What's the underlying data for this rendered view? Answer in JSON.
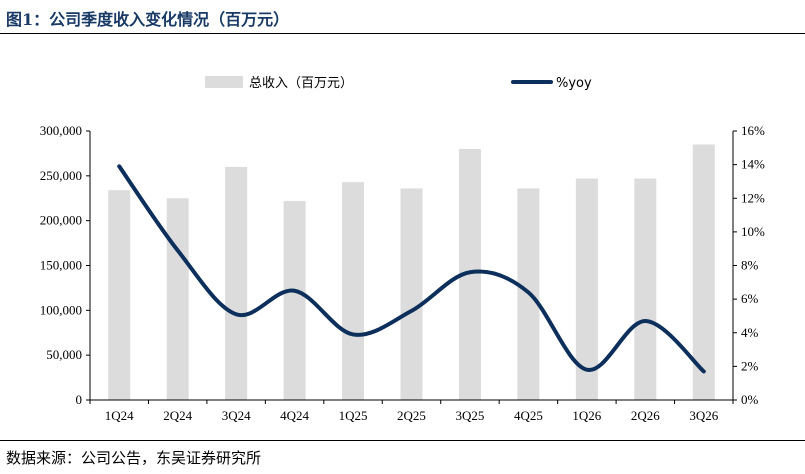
{
  "figure": {
    "title": "图1：公司季度收入变化情况（百万元）",
    "source": "数据来源：公司公告，东吴证券研究所"
  },
  "chart_data": {
    "type": "bar",
    "categories": [
      "1Q24",
      "2Q24",
      "3Q24",
      "4Q24",
      "1Q25",
      "2Q25",
      "3Q25",
      "4Q25",
      "1Q26",
      "2Q26",
      "3Q26"
    ],
    "series": [
      {
        "name": "总收入（百万元）",
        "type": "bar",
        "axis": "left",
        "color": "#dcdcdc",
        "values": [
          234000,
          225000,
          260000,
          222000,
          243000,
          236000,
          280000,
          236000,
          247000,
          247000,
          285000
        ]
      },
      {
        "name": "%yoy",
        "type": "line",
        "axis": "right",
        "color": "#0d2f5c",
        "values": [
          13.9,
          8.9,
          5.1,
          6.5,
          3.9,
          5.3,
          7.6,
          6.4,
          1.8,
          4.7,
          1.7
        ]
      }
    ],
    "y_left": {
      "lim": [
        0,
        300000
      ],
      "ticks": [
        0,
        50000,
        100000,
        150000,
        200000,
        250000,
        300000
      ],
      "tick_labels": [
        "0",
        "50,000",
        "100,000",
        "150,000",
        "200,000",
        "250,000",
        "300,000"
      ]
    },
    "y_right": {
      "lim": [
        0,
        16
      ],
      "ticks": [
        0,
        2,
        4,
        6,
        8,
        10,
        12,
        14,
        16
      ],
      "tick_labels": [
        "0%",
        "2%",
        "4%",
        "6%",
        "8%",
        "10%",
        "12%",
        "14%",
        "16%"
      ]
    },
    "grid": false,
    "legend": "top-center"
  }
}
